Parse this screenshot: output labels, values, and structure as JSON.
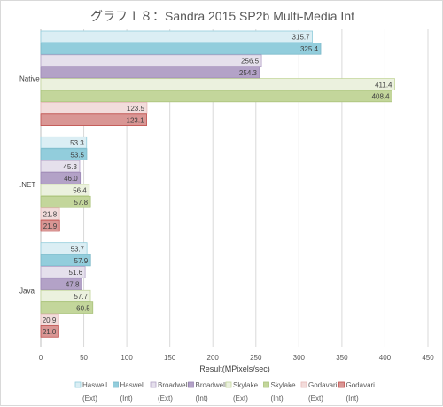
{
  "chart_data": {
    "type": "bar",
    "orientation": "horizontal",
    "title": "グラフ１８：Sandra 2015 SP2b Multi-Media Int",
    "xlabel": "Result(MPixels/sec)",
    "ylabel": "",
    "xlim": [
      0,
      450
    ],
    "xticks": [
      0,
      50,
      100,
      150,
      200,
      250,
      300,
      350,
      400,
      450
    ],
    "grid": true,
    "legend_position": "bottom",
    "categories": [
      "Native",
      ".NET",
      "Java"
    ],
    "series": [
      {
        "name": "Haswell",
        "name2": "(Ext)",
        "fill": "#dbeef4",
        "stroke": "#92cddc",
        "values": [
          315.7,
          53.3,
          53.7
        ]
      },
      {
        "name": "Haswell",
        "name2": "(Int)",
        "fill": "#92cddc",
        "stroke": "#7ab8c8",
        "values": [
          325.4,
          53.5,
          57.9
        ]
      },
      {
        "name": "Broadwell",
        "name2": "(Ext)",
        "fill": "#e5e0ec",
        "stroke": "#b3a2c7",
        "values": [
          256.5,
          45.3,
          51.6
        ]
      },
      {
        "name": "Broadwell",
        "name2": "(Int)",
        "fill": "#b3a2c7",
        "stroke": "#9b87b5",
        "values": [
          254.3,
          46.0,
          47.8
        ]
      },
      {
        "name": "Skylake",
        "name2": "(Ext)",
        "fill": "#ebf1de",
        "stroke": "#c3d69b",
        "values": [
          411.4,
          56.4,
          57.7
        ]
      },
      {
        "name": "Skylake",
        "name2": "(Int)",
        "fill": "#c3d69b",
        "stroke": "#a9c27a",
        "values": [
          408.4,
          57.8,
          60.5
        ]
      },
      {
        "name": "Godavari",
        "name2": "(Ext)",
        "fill": "#f2dcdb",
        "stroke": "#e6b9b8",
        "values": [
          123.5,
          21.8,
          20.9
        ]
      },
      {
        "name": "Godavari",
        "name2": "(Int)",
        "fill": "#d99694",
        "stroke": "#c0504d",
        "values": [
          123.1,
          21.9,
          21.0
        ]
      }
    ]
  }
}
